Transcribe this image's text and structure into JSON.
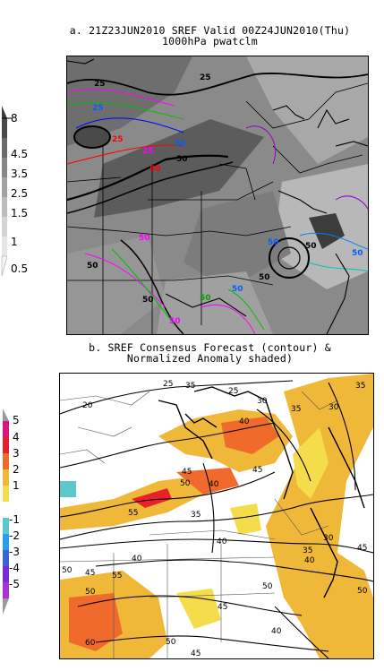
{
  "panel_a": {
    "title_line1": "a. 21Z23JUN2010 SREF Valid 00Z24JUN2010(Thu)",
    "title_line2": "1000hPa pwatclm",
    "colorbar_labels": [
      "8",
      "4.5",
      "3.5",
      "2.5",
      "1.5",
      "1",
      "0.5"
    ],
    "contour_labels": [
      "25",
      "25",
      "25",
      "25",
      "25",
      "50",
      "50",
      "50",
      "50",
      "50",
      "50",
      "50",
      "50",
      "50",
      "50",
      "50",
      "50",
      "50"
    ]
  },
  "panel_b": {
    "title_line1": "b. SREF Consensus Forecast (contour) &",
    "title_line2": "Normalized Anomaly shaded)",
    "colorbar_labels": [
      "5",
      "4",
      "3",
      "2",
      "1",
      "-1",
      "-2",
      "-3",
      "-4",
      "-5"
    ],
    "colorbar_colors": [
      "#e0137a",
      "#e8202b",
      "#f06a2c",
      "#f0b838",
      "#f4dc4a",
      "#ffffff",
      "#5bc8cc",
      "#2a9ee8",
      "#3b63d8",
      "#7a2ad8",
      "#b030d8",
      "#9a9a9a"
    ],
    "contour_labels": [
      "20",
      "25",
      "25",
      "30",
      "35",
      "35",
      "30",
      "35",
      "40",
      "45",
      "45",
      "50",
      "40",
      "55",
      "35",
      "40",
      "30",
      "35",
      "40",
      "45",
      "40",
      "50",
      "45",
      "50",
      "55",
      "50",
      "45",
      "50",
      "60",
      "50",
      "45",
      "40"
    ]
  }
}
